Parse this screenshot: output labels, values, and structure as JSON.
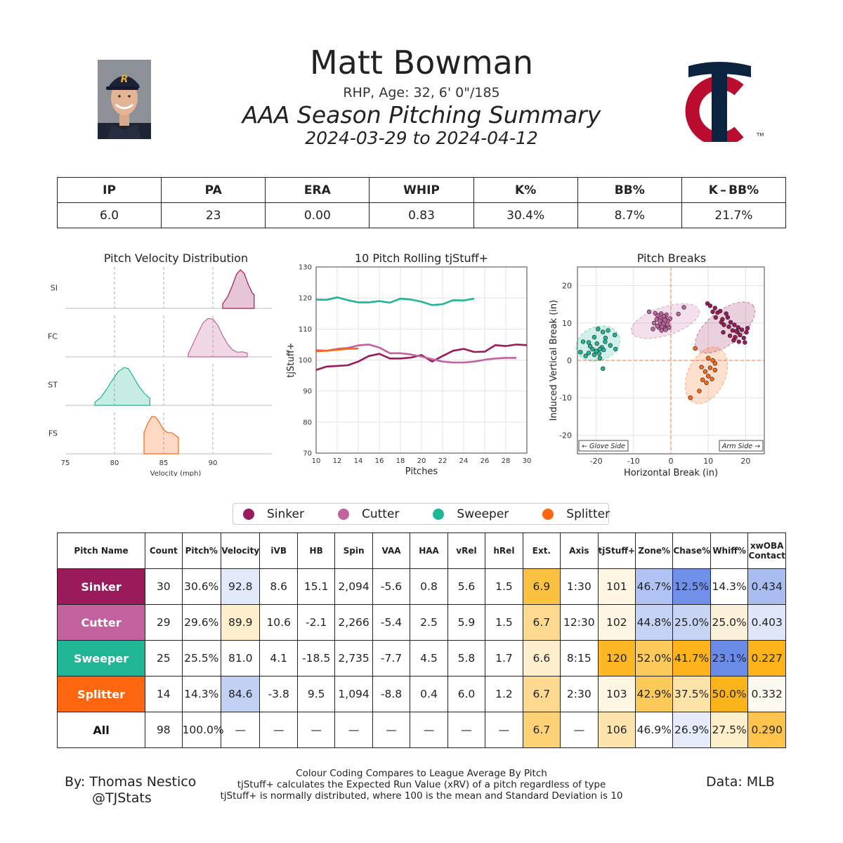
{
  "header": {
    "name": "Matt Bowman",
    "bio": "RHP, Age: 32, 6' 0\"/185",
    "title": "AAA Season Pitching Summary",
    "dates": "2024-03-29 to 2024-04-12"
  },
  "summary": {
    "headers": [
      "IP",
      "PA",
      "ERA",
      "WHIP",
      "K%",
      "BB%",
      "K – BB%"
    ],
    "values": [
      "6.0",
      "23",
      "0.00",
      "0.83",
      "30.4%",
      "8.7%",
      "21.7%"
    ]
  },
  "colors": {
    "Sinker": "#9a1a5c",
    "Cutter": "#c263a0",
    "Sweeper": "#1fb595",
    "Splitter": "#ff6610",
    "twins_navy": "#0c2340",
    "twins_red": "#ba0c2f"
  },
  "chart_data": [
    {
      "type": "area",
      "title": "Pitch Velocity Distribution",
      "xlabel": "Velocity (mph)",
      "xlim": [
        75,
        96
      ],
      "xticks": [
        75,
        80,
        85,
        90
      ],
      "series": [
        {
          "name": "SI",
          "pitch": "Sinker",
          "range": [
            91.0,
            94.2
          ],
          "x": [
            91.0,
            91.5,
            92.0,
            92.4,
            92.8,
            93.2,
            93.6,
            94.0,
            94.2
          ],
          "density": [
            0.12,
            0.3,
            0.6,
            0.88,
            1.0,
            0.9,
            0.62,
            0.4,
            0.35
          ]
        },
        {
          "name": "FC",
          "pitch": "Cutter",
          "range": [
            87.5,
            93.5
          ],
          "x": [
            87.5,
            88.0,
            88.5,
            89.0,
            89.5,
            90.0,
            90.5,
            91.0,
            91.5,
            92.0,
            92.5,
            93.0,
            93.5
          ],
          "density": [
            0.08,
            0.35,
            0.62,
            0.88,
            0.99,
            0.98,
            0.82,
            0.55,
            0.33,
            0.18,
            0.12,
            0.13,
            0.1
          ]
        },
        {
          "name": "ST",
          "pitch": "Sweeper",
          "range": [
            78.0,
            83.6
          ],
          "x": [
            78.0,
            78.6,
            79.2,
            79.8,
            80.4,
            81.0,
            81.4,
            81.9,
            82.4,
            83.0,
            83.6
          ],
          "density": [
            0.08,
            0.2,
            0.42,
            0.66,
            0.88,
            0.98,
            0.95,
            0.75,
            0.52,
            0.32,
            0.18
          ]
        },
        {
          "name": "FS",
          "pitch": "Splitter",
          "range": [
            83.0,
            86.5
          ],
          "x": [
            83.0,
            83.4,
            83.8,
            84.2,
            84.6,
            85.0,
            85.4,
            85.8,
            86.2,
            86.5
          ],
          "density": [
            0.55,
            0.8,
            0.97,
            0.95,
            0.8,
            0.62,
            0.55,
            0.55,
            0.48,
            0.42
          ]
        }
      ]
    },
    {
      "type": "line",
      "title": "10 Pitch Rolling tjStuff+",
      "xlabel": "Pitches",
      "ylabel": "tjStuff+",
      "xlim": [
        10,
        30
      ],
      "ylim": [
        70,
        130
      ],
      "xticks": [
        10,
        12,
        14,
        16,
        18,
        20,
        22,
        24,
        26,
        28,
        30
      ],
      "yticks": [
        70,
        80,
        90,
        100,
        110,
        120,
        130
      ],
      "series": [
        {
          "name": "Sweeper",
          "x": [
            10,
            11,
            12,
            13,
            14,
            15,
            16,
            17,
            18,
            19,
            20,
            21,
            22,
            23,
            24,
            25
          ],
          "y": [
            119.5,
            119.4,
            120.2,
            119.3,
            118.6,
            118.6,
            119.0,
            118.5,
            119.8,
            119.5,
            118.8,
            117.7,
            118.0,
            119.3,
            119.2,
            119.8
          ]
        },
        {
          "name": "Sinker",
          "x": [
            10,
            11,
            12,
            13,
            14,
            15,
            16,
            17,
            18,
            19,
            20,
            21,
            22,
            23,
            24,
            25,
            26,
            27,
            28,
            29,
            30
          ],
          "y": [
            96.8,
            97.9,
            98.1,
            98.3,
            99.5,
            101.3,
            102.0,
            100.5,
            100.5,
            100.8,
            101.6,
            99.5,
            101.3,
            103.0,
            103.6,
            102.6,
            102.7,
            104.8,
            104.5,
            105.0,
            104.8
          ]
        },
        {
          "name": "Cutter",
          "x": [
            10,
            11,
            12,
            13,
            14,
            15,
            16,
            17,
            18,
            19,
            20,
            21,
            22,
            23,
            24,
            25,
            26,
            27,
            28,
            29
          ],
          "y": [
            103.2,
            103.0,
            103.6,
            103.9,
            104.7,
            105.0,
            104.0,
            102.2,
            102.2,
            101.8,
            101.1,
            100.3,
            99.5,
            99.2,
            99.2,
            99.5,
            100.1,
            100.5,
            100.7,
            100.7
          ]
        },
        {
          "name": "Splitter",
          "x": [
            10,
            11,
            12,
            13,
            14
          ],
          "y": [
            102.8,
            103.0,
            103.3,
            103.6,
            103.7
          ]
        }
      ]
    },
    {
      "type": "scatter",
      "title": "Pitch Breaks",
      "xlabel": "Horizontal Break (in)",
      "ylabel": "Induced Vertical Break (in)",
      "xlim": [
        -25,
        25
      ],
      "ylim": [
        -25,
        25
      ],
      "xticks": [
        -20,
        -10,
        0,
        10,
        20
      ],
      "yticks": [
        -20,
        -10,
        0,
        10,
        20
      ],
      "annotations": [
        "← Glove Side",
        "Arm Side →"
      ],
      "series": [
        {
          "name": "Sinker",
          "ellipse": {
            "cx": 14.5,
            "cy": 8.8,
            "rx": 9.5,
            "ry": 4.5,
            "angle_deg": -38
          },
          "points": [
            [
              9.8,
              15.2
            ],
            [
              10.5,
              14.6
            ],
            [
              11.8,
              14.0
            ],
            [
              12.5,
              12.8
            ],
            [
              13.2,
              13.2
            ],
            [
              14.8,
              12.5
            ],
            [
              12.0,
              11.5
            ],
            [
              13.8,
              11.0
            ],
            [
              15.2,
              11.5
            ],
            [
              16.0,
              10.2
            ],
            [
              14.2,
              9.5
            ],
            [
              15.5,
              9.0
            ],
            [
              17.0,
              9.5
            ],
            [
              18.0,
              8.8
            ],
            [
              16.5,
              8.0
            ],
            [
              17.8,
              7.6
            ],
            [
              19.0,
              8.2
            ],
            [
              20.2,
              7.5
            ],
            [
              18.5,
              6.8
            ],
            [
              17.2,
              6.2
            ],
            [
              15.8,
              6.6
            ],
            [
              19.5,
              6.0
            ],
            [
              16.8,
              5.4
            ],
            [
              18.2,
              5.0
            ],
            [
              20.5,
              8.6
            ],
            [
              13.5,
              10.2
            ],
            [
              11.2,
              13.0
            ],
            [
              14.0,
              7.5
            ],
            [
              19.8,
              4.8
            ],
            [
              17.5,
              7.8
            ]
          ]
        },
        {
          "name": "Cutter",
          "ellipse": {
            "cx": -1.5,
            "cy": 10.5,
            "rx": 9.5,
            "ry": 3.8,
            "angle_deg": -18
          },
          "points": [
            [
              -5.8,
              13.0
            ],
            [
              -4.2,
              12.6
            ],
            [
              -3.5,
              12.0
            ],
            [
              -2.8,
              11.2
            ],
            [
              -1.5,
              11.5
            ],
            [
              -0.8,
              10.5
            ],
            [
              -2.2,
              10.2
            ],
            [
              -3.0,
              9.6
            ],
            [
              -1.0,
              9.2
            ],
            [
              -1.8,
              8.6
            ],
            [
              -4.5,
              10.0
            ],
            [
              -2.5,
              8.0
            ],
            [
              -0.5,
              8.8
            ],
            [
              -3.8,
              11.0
            ],
            [
              -1.2,
              12.2
            ],
            [
              -2.0,
              9.8
            ],
            [
              -3.2,
              8.8
            ],
            [
              -0.2,
              11.2
            ],
            [
              -2.6,
              12.5
            ],
            [
              -1.6,
              10.8
            ],
            [
              -4.8,
              8.4
            ],
            [
              -2.9,
              10.6
            ],
            [
              -1.9,
              11.8
            ],
            [
              -0.9,
              9.6
            ],
            [
              -3.6,
              9.2
            ],
            [
              -2.4,
              9.0
            ],
            [
              -1.4,
              8.2
            ],
            [
              3.5,
              14.2
            ],
            [
              2.0,
              12.4
            ]
          ]
        },
        {
          "name": "Sweeper",
          "ellipse": {
            "cx": -19.5,
            "cy": 4.5,
            "rx": 6.0,
            "ry": 4.5,
            "angle_deg": -20
          },
          "points": [
            [
              -19.5,
              8.4
            ],
            [
              -16.8,
              8.0
            ],
            [
              -18.2,
              7.6
            ],
            [
              -15.0,
              6.8
            ],
            [
              -20.5,
              6.2
            ],
            [
              -17.5,
              6.0
            ],
            [
              -23.5,
              5.0
            ],
            [
              -22.0,
              4.8
            ],
            [
              -19.8,
              4.5
            ],
            [
              -18.5,
              3.5
            ],
            [
              -21.0,
              3.0
            ],
            [
              -19.0,
              3.0
            ],
            [
              -18.0,
              2.8
            ],
            [
              -20.0,
              2.5
            ],
            [
              -22.0,
              2.0
            ],
            [
              -19.2,
              1.8
            ],
            [
              -20.5,
              1.5
            ],
            [
              -16.2,
              4.0
            ],
            [
              -14.8,
              3.0
            ],
            [
              -24.2,
              2.2
            ],
            [
              -22.8,
              1.2
            ],
            [
              -19.0,
              0.6
            ],
            [
              -17.6,
              5.0
            ],
            [
              -21.6,
              3.8
            ],
            [
              -18.2,
              -2.2
            ]
          ]
        },
        {
          "name": "Splitter",
          "ellipse": {
            "cx": 9.5,
            "cy": -4.0,
            "rx": 5.0,
            "ry": 8.0,
            "angle_deg": 25
          },
          "points": [
            [
              6.5,
              3.2
            ],
            [
              10.0,
              0.6
            ],
            [
              11.2,
              0.0
            ],
            [
              11.8,
              -0.8
            ],
            [
              8.2,
              -1.8
            ],
            [
              10.5,
              -2.0
            ],
            [
              9.2,
              -3.0
            ],
            [
              11.8,
              -2.6
            ],
            [
              10.0,
              -4.2
            ],
            [
              8.5,
              -5.2
            ],
            [
              11.0,
              -5.0
            ],
            [
              9.5,
              -6.0
            ],
            [
              7.6,
              -8.2
            ],
            [
              5.2,
              -10.0
            ]
          ]
        }
      ]
    }
  ],
  "pitch_table": {
    "headers": [
      "Pitch Name",
      "Count",
      "Pitch%",
      "Velocity",
      "iVB",
      "HB",
      "Spin",
      "VAA",
      "HAA",
      "vRel",
      "hRel",
      "Ext.",
      "Axis",
      "tjStuff+",
      "Zone%",
      "Chase%",
      "Whiff%",
      "xwOBA Contact"
    ],
    "rows": [
      {
        "pitch": "Sinker",
        "cells": [
          "Sinker",
          "30",
          "30.6%",
          "92.8",
          "8.6",
          "15.1",
          "2,094",
          "-5.6",
          "0.8",
          "5.6",
          "1.5",
          "6.9",
          "1:30",
          "101",
          "46.7%",
          "12.5%",
          "14.3%",
          "0.434"
        ]
      },
      {
        "pitch": "Cutter",
        "cells": [
          "Cutter",
          "29",
          "29.6%",
          "89.9",
          "10.6",
          "-2.1",
          "2,266",
          "-5.4",
          "2.5",
          "5.9",
          "1.5",
          "6.7",
          "12:30",
          "102",
          "44.8%",
          "25.0%",
          "25.0%",
          "0.403"
        ]
      },
      {
        "pitch": "Sweeper",
        "cells": [
          "Sweeper",
          "25",
          "25.5%",
          "81.0",
          "4.1",
          "-18.5",
          "2,735",
          "-7.7",
          "4.5",
          "5.8",
          "1.7",
          "6.6",
          "8:15",
          "120",
          "52.0%",
          "41.7%",
          "23.1%",
          "0.227"
        ]
      },
      {
        "pitch": "Splitter",
        "cells": [
          "Splitter",
          "14",
          "14.3%",
          "84.6",
          "-3.8",
          "9.5",
          "1,094",
          "-8.8",
          "0.4",
          "6.0",
          "1.2",
          "6.7",
          "2:30",
          "103",
          "42.9%",
          "37.5%",
          "50.0%",
          "0.332"
        ]
      },
      {
        "pitch": "All",
        "cells": [
          "All",
          "98",
          "100.0%",
          "—",
          "—",
          "—",
          "—",
          "—",
          "—",
          "—",
          "—",
          "6.7",
          "—",
          "106",
          "46.9%",
          "26.9%",
          "27.5%",
          "0.290"
        ]
      }
    ],
    "cell_colors": [
      [
        "#9a1a5c",
        "#ffffff",
        "#ffffff",
        "#e2e9f8",
        "#ffffff",
        "#ffffff",
        "#ffffff",
        "#ffffff",
        "#ffffff",
        "#ffffff",
        "#ffffff",
        "#fbc242",
        "#ffffff",
        "#fff6e4",
        "#b0c3f2",
        "#6f8fe8",
        "#ffffff",
        "#a9bdf0"
      ],
      [
        "#c263a0",
        "#ffffff",
        "#ffffff",
        "#fdefcc",
        "#ffffff",
        "#ffffff",
        "#ffffff",
        "#ffffff",
        "#ffffff",
        "#ffffff",
        "#ffffff",
        "#fdda8f",
        "#ffffff",
        "#fff6e4",
        "#c4d2f4",
        "#c7d4f4",
        "#fbf0d8",
        "#dfe6f8"
      ],
      [
        "#1fb595",
        "#ffffff",
        "#ffffff",
        "#ffffff",
        "#ffffff",
        "#ffffff",
        "#ffffff",
        "#ffffff",
        "#ffffff",
        "#ffffff",
        "#ffffff",
        "#fef0cf",
        "#ffffff",
        "#fcb824",
        "#fcca58",
        "#fcb41a",
        "#6a8ce6",
        "#fcb41a"
      ],
      [
        "#ff6610",
        "#ffffff",
        "#ffffff",
        "#c2d0f4",
        "#ffffff",
        "#ffffff",
        "#ffffff",
        "#ffffff",
        "#ffffff",
        "#ffffff",
        "#ffffff",
        "#fdda8f",
        "#ffffff",
        "#fff6e4",
        "#fcca58",
        "#fde3a8",
        "#fcb41a",
        "#fffaf0"
      ],
      [
        "#ffffff",
        "#ffffff",
        "#ffffff",
        "#ffffff",
        "#ffffff",
        "#ffffff",
        "#ffffff",
        "#ffffff",
        "#ffffff",
        "#ffffff",
        "#ffffff",
        "#fdd176",
        "#ffffff",
        "#fde4ac",
        "#ffffff",
        "#e6ecf9",
        "#fdefcc",
        "#fcc44c"
      ]
    ]
  },
  "footer": {
    "credit": "By: Thomas Nestico",
    "handle": "@TJStats",
    "data_source": "Data: MLB",
    "notes": [
      "Colour Coding Compares to League Average By Pitch",
      "tjStuff+ calculates the Expected Run Value (xRV) of a pitch regardless of type",
      "tjStuff+ is normally distributed, where 100 is the mean and Standard Deviation is 10"
    ]
  }
}
